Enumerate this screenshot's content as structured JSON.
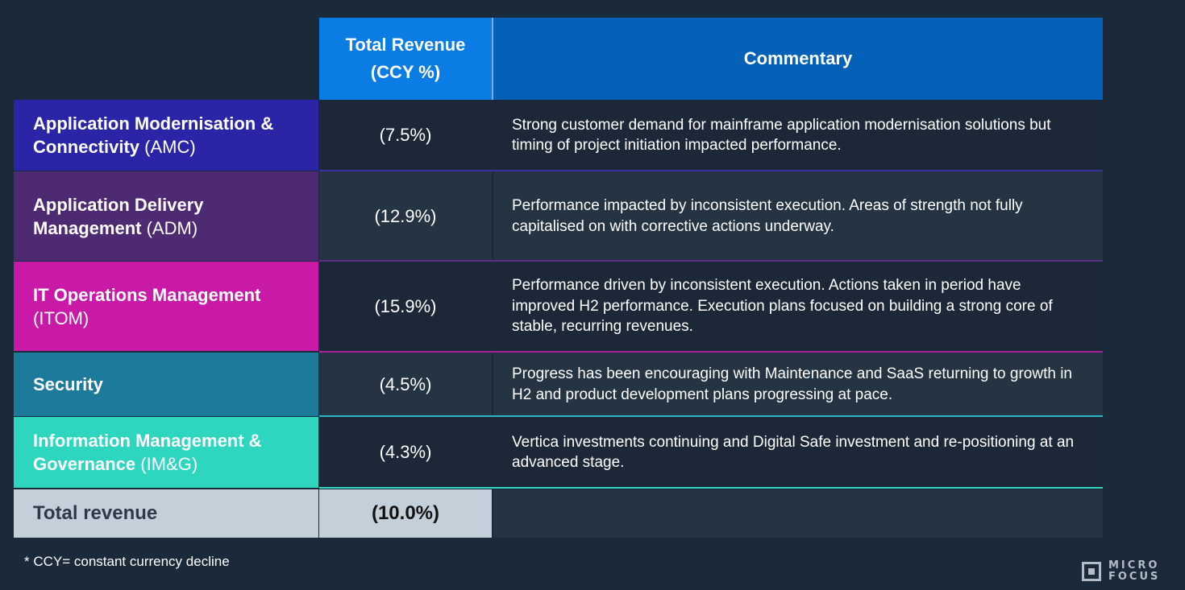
{
  "header": {
    "total_revenue_line1": "Total Revenue",
    "total_revenue_line2": "(CCY %)",
    "commentary": "Commentary"
  },
  "rows": [
    {
      "name_bold": "Application Modernisation & Connectivity",
      "name_abbr": "(AMC)",
      "value": "(7.5%)",
      "commentary": "Strong customer demand for mainframe application modernisation solutions but timing of project initiation impacted performance.",
      "color": "#2a25a6"
    },
    {
      "name_bold": "Application Delivery Management",
      "name_abbr": "(ADM)",
      "value": "(12.9%)",
      "commentary": "Performance impacted by inconsistent execution.  Areas of strength not fully capitalised on with corrective actions underway.",
      "color": "#4e2a72"
    },
    {
      "name_bold": "IT Operations Management",
      "name_abbr": "(ITOM)",
      "value": "(15.9%)",
      "commentary": "Performance driven by inconsistent execution. Actions taken in period have improved H2 performance. Execution plans focused on building a strong core of stable, recurring revenues.",
      "color": "#c81aa6"
    },
    {
      "name_bold": "Security",
      "name_abbr": "",
      "value": "(4.5%)",
      "commentary": "Progress has been encouraging with Maintenance and SaaS returning to growth in H2 and product development plans progressing at pace.",
      "color": "#1e7a9a"
    },
    {
      "name_bold": "Information Management & Governance",
      "name_abbr": "(IM&G)",
      "value": "(4.3%)",
      "commentary": "Vertica investments continuing and Digital Safe investment and re-positioning at an advanced stage.",
      "color": "#2ed6c0"
    }
  ],
  "total": {
    "label": "Total revenue",
    "value": "(10.0%)"
  },
  "footnote": "* CCY= constant currency decline",
  "logo": {
    "line1": "MICRO",
    "line2": "FOCUS"
  }
}
